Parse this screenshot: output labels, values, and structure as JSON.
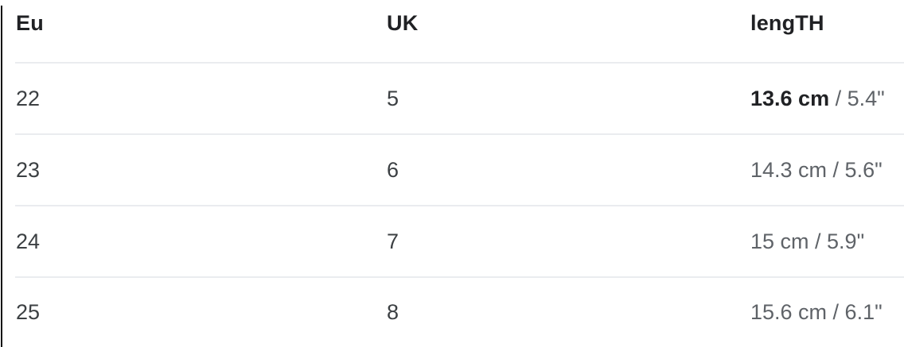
{
  "chart_data": {
    "type": "table",
    "title": "",
    "columns": [
      "Eu",
      "UK",
      "lengTH"
    ],
    "rows": [
      [
        "22",
        "5",
        "13.6 cm / 5.4\""
      ],
      [
        "23",
        "6",
        "14.3 cm / 5.6\""
      ],
      [
        "24",
        "7",
        "15 cm / 5.9\""
      ],
      [
        "25",
        "8",
        "15.6 cm / 6.1\""
      ]
    ],
    "layout": {
      "grid": "horizontal row dividers only, inset from left edge",
      "header_position": "top"
    }
  },
  "table": {
    "headers": [
      {
        "label": "Eu"
      },
      {
        "label": "UK"
      },
      {
        "label": "lengTH"
      }
    ],
    "rows": [
      {
        "eu": "22",
        "uk": "5",
        "length_cm": "13.6 cm",
        "length_in": " / 5.4\"",
        "cm_bold": true
      },
      {
        "eu": "23",
        "uk": "6",
        "length_cm": "14.3 cm",
        "length_in": " / 5.6\"",
        "cm_bold": false
      },
      {
        "eu": "24",
        "uk": "7",
        "length_cm": "15 cm",
        "length_in": " / 5.9\"",
        "cm_bold": false
      },
      {
        "eu": "25",
        "uk": "8",
        "length_cm": "15.6 cm",
        "length_in": " / 6.1\"",
        "cm_bold": false
      }
    ]
  },
  "colors": {
    "background": "#ffffff",
    "header_text": "#202124",
    "cell_text": "#3c4043",
    "length_muted_text": "#5f6368",
    "bold_text": "#202124",
    "row_divider": "#eaecef",
    "page_border": "#141414"
  }
}
